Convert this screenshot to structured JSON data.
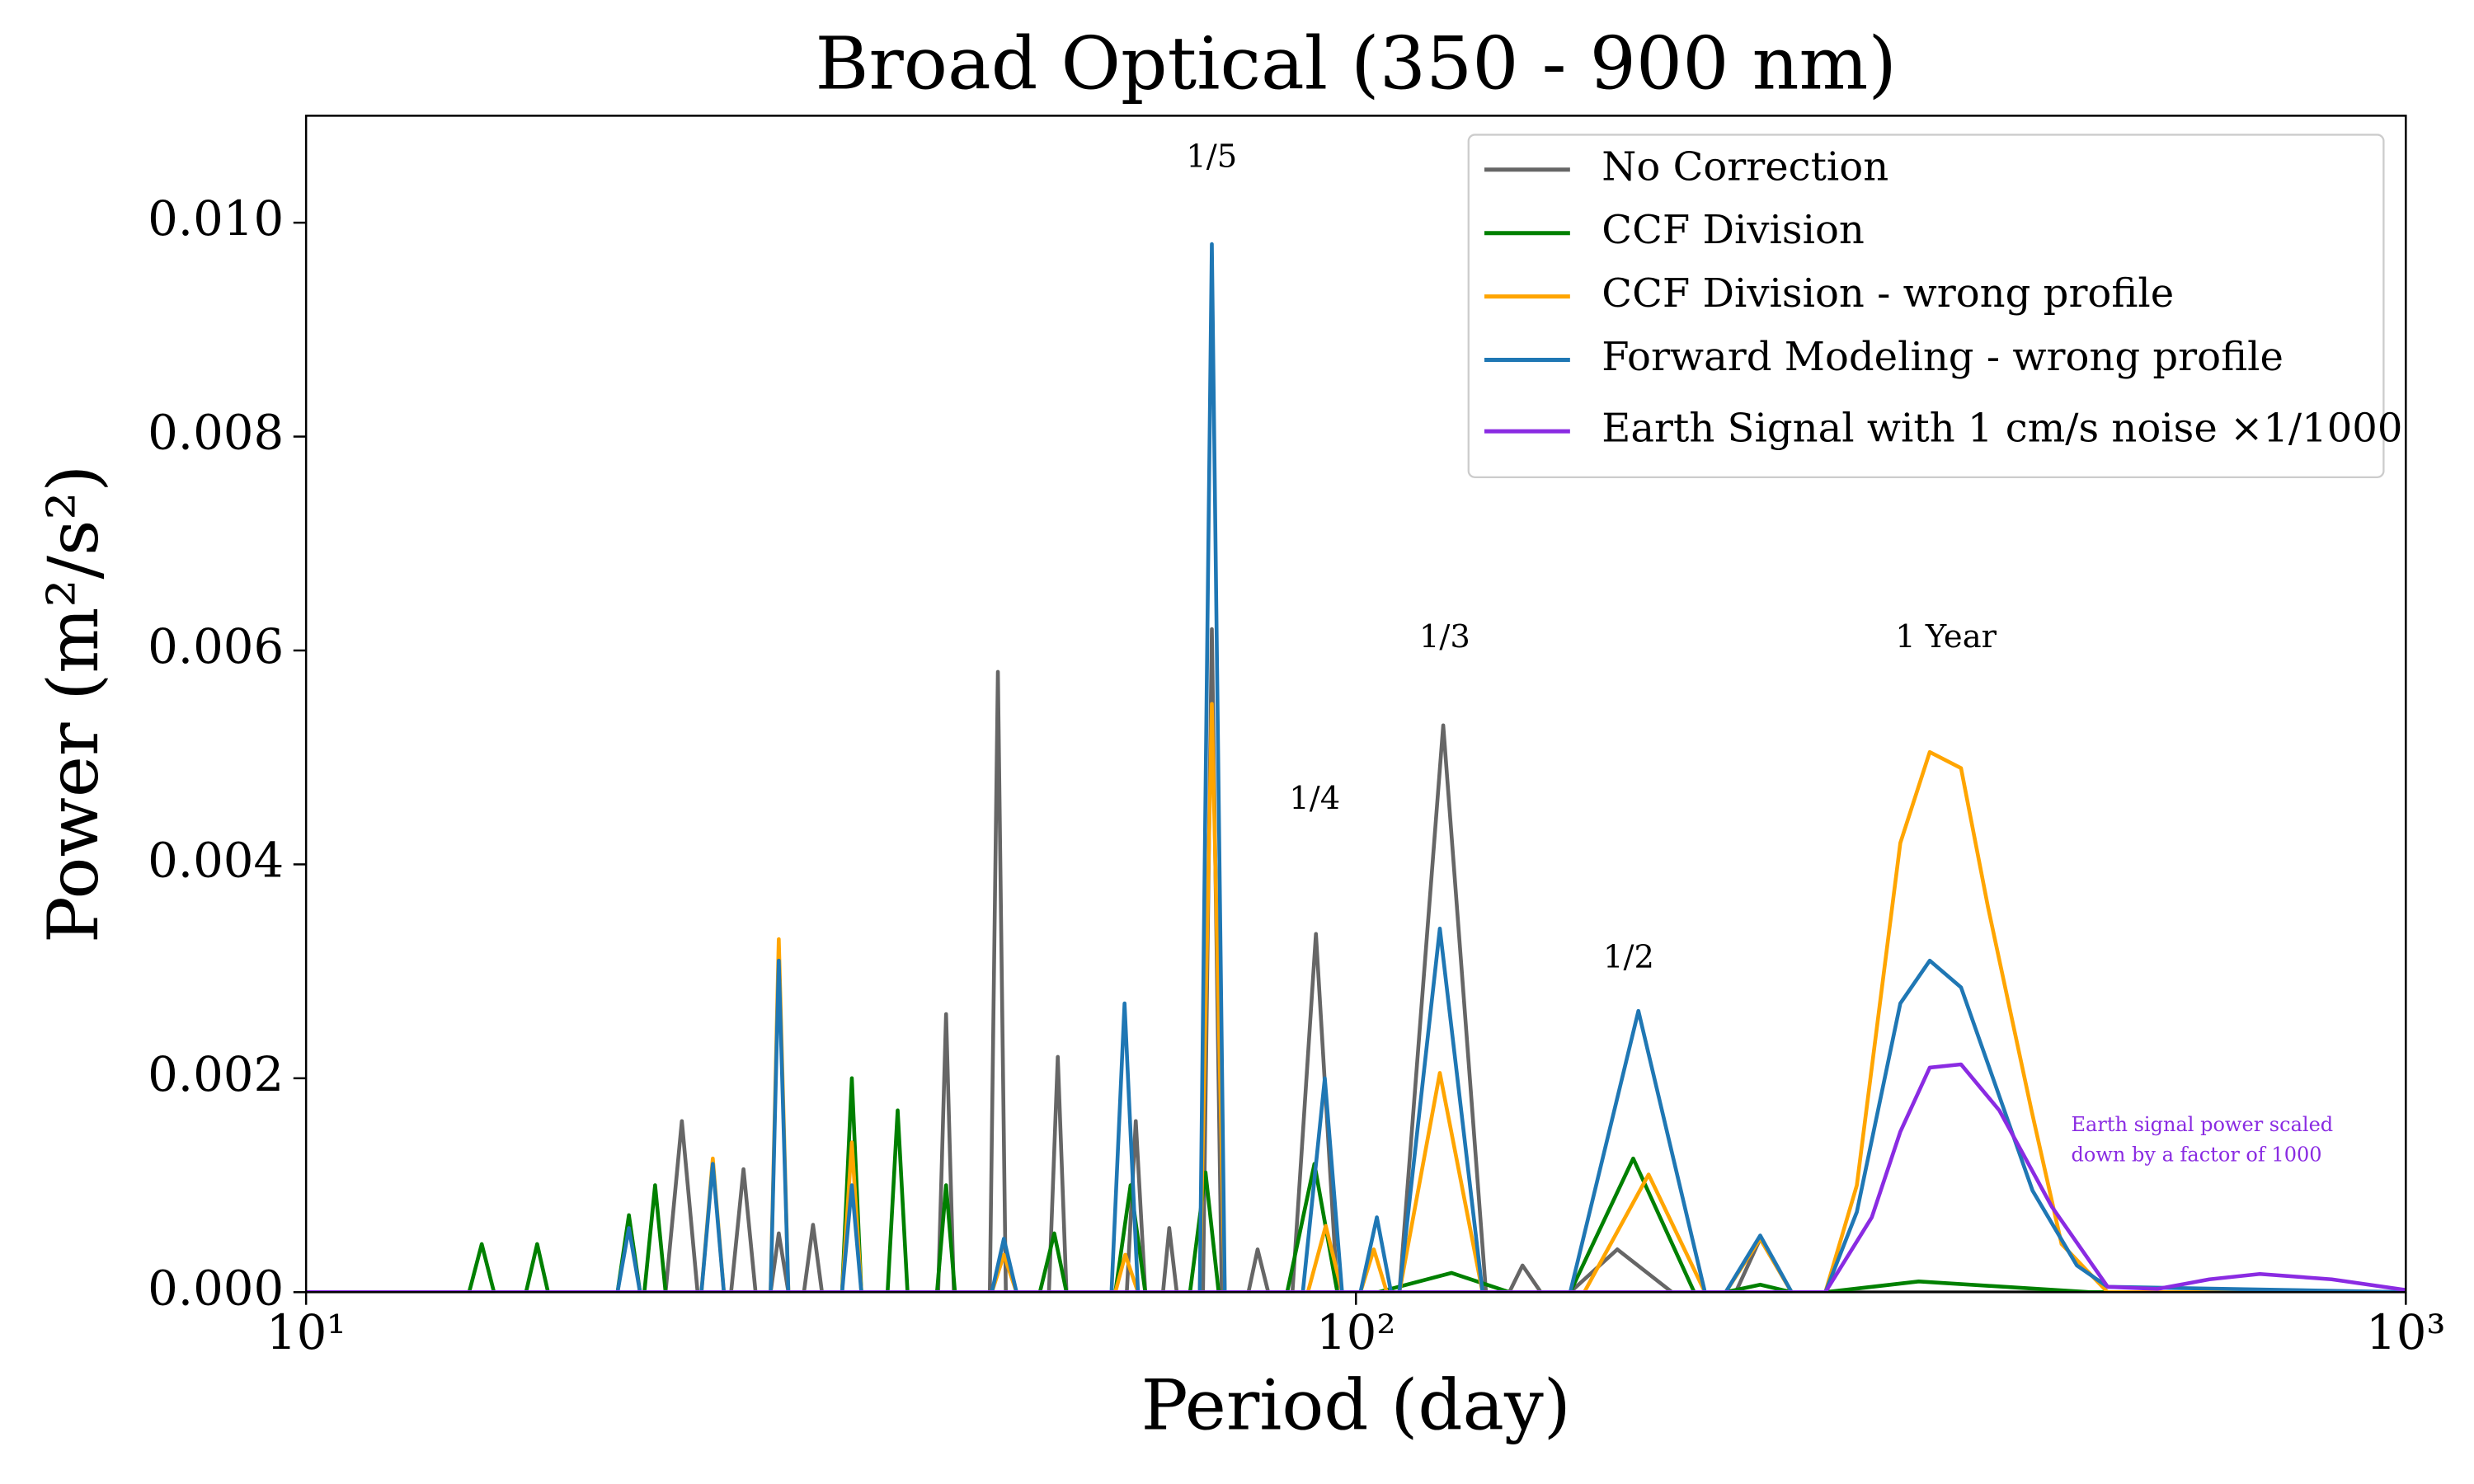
{
  "chart_data": {
    "type": "line",
    "title": "Broad Optical (350 - 900 nm)",
    "x_label": "Period (day)",
    "y_label": "Power (m²/s²)",
    "xscale": "log",
    "xlim": [
      10,
      1000
    ],
    "ylim": [
      0,
      0.011
    ],
    "xticks": [
      {
        "value": 10,
        "label": "10¹"
      },
      {
        "value": 100,
        "label": "10²"
      },
      {
        "value": 1000,
        "label": "10³"
      }
    ],
    "yticks": [
      {
        "value": 0,
        "label": "0.000"
      },
      {
        "value": 0.002,
        "label": "0.002"
      },
      {
        "value": 0.004,
        "label": "0.004"
      },
      {
        "value": 0.006,
        "label": "0.006"
      },
      {
        "value": 0.008,
        "label": "0.008"
      },
      {
        "value": 0.01,
        "label": "0.010"
      }
    ],
    "legend": "upper right",
    "series": [
      {
        "name": "No Correction",
        "color": "#666666",
        "x": [
          10,
          22.0,
          22.8,
          23.6,
          25.4,
          26.1,
          26.8,
          27.7,
          28.2,
          28.8,
          29.8,
          30.4,
          31.0,
          40.0,
          40.7,
          41.4,
          44.8,
          45.6,
          46.4,
          51,
          52,
          53,
          60.5,
          61.7,
          63,
          65.5,
          66.4,
          67.5,
          71.5,
          72.9,
          74.5,
          79,
          80.6,
          82.5,
          87,
          91.6,
          96,
          110,
          121.1,
          133,
          140,
          144.1,
          150,
          160,
          177.4,
          200,
          230,
          242.7,
          260,
          1000
        ],
        "values": [
          0,
          0,
          0.0016,
          0,
          0,
          0.00115,
          0,
          0,
          0.00055,
          0,
          0,
          0.00063,
          0,
          0,
          0.0026,
          0,
          0,
          0.0058,
          0,
          0,
          0.0022,
          0,
          0,
          0.0016,
          0,
          0,
          0.0006,
          0,
          0,
          0.0062,
          0,
          0,
          0.0004,
          0,
          0,
          0.00335,
          0,
          0,
          0.0053,
          0,
          0,
          0.00025,
          0,
          0,
          0.0004,
          0,
          0,
          0.0005,
          0,
          0
        ]
      },
      {
        "name": "CCF Division",
        "color": "#008000",
        "x": [
          10,
          14.3,
          14.7,
          15.1,
          16.2,
          16.6,
          17.0,
          19.8,
          20.3,
          20.8,
          21.0,
          21.5,
          22.0,
          32.4,
          33.1,
          33.8,
          35.8,
          36.6,
          37.4,
          39.9,
          40.7,
          41.5,
          50,
          51.6,
          53,
          59,
          61.0,
          63,
          69.5,
          71.9,
          74,
          86,
          91.3,
          96,
          105,
          123.3,
          140,
          160,
          183.7,
          210,
          225,
          242.7,
          260,
          280,
          343.6,
          500,
          1000
        ],
        "values": [
          0,
          0,
          0.00045,
          0,
          0,
          0.00045,
          0,
          0,
          0.00072,
          0,
          0,
          0.001,
          0,
          0,
          0.002,
          0,
          0,
          0.0017,
          0,
          0,
          0.001,
          0,
          0,
          0.00055,
          0,
          0,
          0.001,
          0,
          0,
          0.00112,
          0,
          0,
          0.0012,
          0,
          0,
          0.00018,
          0,
          0,
          0.00125,
          0,
          0,
          7e-05,
          0,
          0,
          0.0001,
          0,
          0
        ]
      },
      {
        "name": "CCF Division - wrong profile",
        "color": "#ffa500",
        "x": [
          10,
          23.8,
          24.4,
          25.0,
          27.7,
          28.2,
          28.8,
          32.4,
          33.1,
          33.8,
          45,
          46.2,
          47.5,
          59,
          60.3,
          62,
          71,
          72.9,
          75,
          90,
          93.6,
          97,
          101,
          104,
          107,
          110,
          120.2,
          132,
          165,
          190,
          215,
          225,
          242.7,
          260,
          280,
          300,
          330,
          352,
          377,
          400,
          440,
          470,
          520,
          1000
        ],
        "values": [
          0,
          0,
          0.00125,
          0,
          0,
          0.0033,
          0,
          0,
          0.0014,
          0,
          0,
          0.00035,
          0,
          0,
          0.00035,
          0,
          0,
          0.0055,
          0,
          0,
          0.00062,
          0,
          0,
          0.0004,
          0,
          0,
          0.00205,
          0,
          0,
          0.0011,
          0,
          0,
          0.0005,
          0,
          0,
          0.001,
          0.0042,
          0.00505,
          0.0049,
          0.0036,
          0.0017,
          0.00045,
          0,
          0
        ]
      },
      {
        "name": "Forward Modeling - wrong profile",
        "color": "#1f77b4",
        "x": [
          10,
          19.8,
          20.3,
          20.8,
          23.8,
          24.4,
          25.0,
          27.7,
          28.2,
          28.8,
          32.4,
          33.1,
          33.8,
          45,
          46.2,
          47.5,
          58.5,
          60.2,
          62,
          71,
          72.9,
          75,
          89,
          93.4,
          97,
          101,
          104.7,
          108,
          110,
          120.2,
          132,
          160,
          185.8,
          215,
          225,
          242.7,
          260,
          280,
          300,
          330,
          352,
          377,
          441,
          486,
          520,
          1000
        ],
        "values": [
          0,
          0,
          0.0006,
          0,
          0,
          0.0012,
          0,
          0,
          0.0031,
          0,
          0,
          0.001,
          0,
          0,
          0.0005,
          0,
          0,
          0.0027,
          0,
          0,
          0.0098,
          0,
          0,
          0.002,
          0,
          0,
          0.0007,
          0,
          0,
          0.0034,
          0,
          0,
          0.00263,
          0,
          0,
          0.00053,
          0,
          0,
          0.00075,
          0.0027,
          0.0031,
          0.00285,
          0.00095,
          0.00025,
          5e-05,
          0
        ]
      },
      {
        "name": "Earth Signal with 1 cm/s noise ×1/1000",
        "color": "#8a2be2",
        "x": [
          10,
          280,
          310,
          330,
          352,
          377,
          410,
          460,
          520,
          580,
          650,
          726,
          850,
          1000
        ],
        "values": [
          0,
          0,
          0.0007,
          0.0015,
          0.0021,
          0.00213,
          0.0017,
          0.0008,
          5e-05,
          3e-05,
          0.00012,
          0.00017,
          0.00012,
          2e-05
        ]
      }
    ],
    "annotations": [
      "1/5",
      "1/4",
      "1/3",
      "1/2",
      "1 Year"
    ],
    "note_lines": [
      "Earth signal power scaled",
      "down by a factor of 1000"
    ]
  }
}
